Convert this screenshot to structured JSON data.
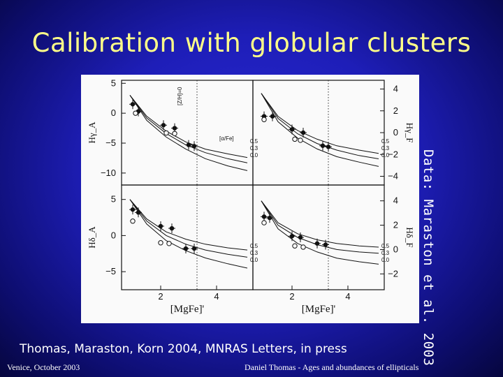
{
  "slide": {
    "title": "Calibration with globular clusters",
    "side_note": "Data: Maraston et al. 2003",
    "citation": "Thomas, Maraston, Korn 2004, MNRAS Letters, in press",
    "footer_left": "Venice, October 2003",
    "footer_right": "Daniel Thomas - Ages and abundances of ellipticals"
  },
  "colors": {
    "title": "#ffff88",
    "text": "#ffffff",
    "background": "#1e1eb8"
  },
  "chart_data": [
    {
      "type": "scatter",
      "panel": "top-left",
      "ylabel": "Hγ_A",
      "xlabel": "",
      "ylim": [
        -12,
        5.5
      ],
      "yticks": [
        5,
        0,
        -5,
        -10
      ],
      "xlim": [
        0.6,
        5.3
      ],
      "vline_x": 3.3,
      "annotations": [
        "[Z/H]=0",
        "[α/Fe]"
      ],
      "series": [
        {
          "name": "0.5",
          "x": [
            0.9,
            1.5,
            2.2,
            2.9,
            3.6,
            4.4,
            5.1
          ],
          "y": [
            3.0,
            -0.5,
            -3.0,
            -4.8,
            -6.0,
            -6.8,
            -7.4
          ]
        },
        {
          "name": "0.3",
          "x": [
            0.9,
            1.5,
            2.2,
            2.9,
            3.6,
            4.4,
            5.1
          ],
          "y": [
            3.0,
            -0.8,
            -3.4,
            -5.3,
            -6.6,
            -7.6,
            -8.3
          ]
        },
        {
          "name": "0.0",
          "x": [
            0.9,
            1.5,
            2.2,
            2.9,
            3.6,
            4.4,
            5.1
          ],
          "y": [
            3.0,
            -1.2,
            -4.0,
            -6.0,
            -7.6,
            -8.8,
            -9.6
          ]
        }
      ],
      "points_filled": [
        [
          1.0,
          1.5
        ],
        [
          1.2,
          0.3
        ],
        [
          2.1,
          -2.0
        ],
        [
          2.5,
          -2.5
        ],
        [
          3.0,
          -5.3
        ],
        [
          3.2,
          -5.5
        ]
      ],
      "points_open": [
        [
          1.1,
          0.0
        ],
        [
          2.2,
          -3.3
        ],
        [
          2.5,
          -3.4
        ]
      ]
    },
    {
      "type": "scatter",
      "panel": "top-right",
      "ylabel": "Hγ_F",
      "xlabel": "",
      "ylim": [
        -4.8,
        4.8
      ],
      "yticks": [
        4,
        2,
        0,
        -2,
        -4
      ],
      "xlim": [
        0.6,
        5.3
      ],
      "vline_x": 3.3,
      "annotations": [],
      "series": [
        {
          "name": "0.5",
          "x": [
            0.9,
            1.5,
            2.2,
            2.9,
            3.6,
            4.4,
            5.1
          ],
          "y": [
            3.6,
            1.5,
            0.2,
            -0.6,
            -1.2,
            -1.6,
            -1.9
          ]
        },
        {
          "name": "0.3",
          "x": [
            0.9,
            1.5,
            2.2,
            2.9,
            3.6,
            4.4,
            5.1
          ],
          "y": [
            3.6,
            1.3,
            -0.1,
            -1.0,
            -1.6,
            -2.1,
            -2.4
          ]
        },
        {
          "name": "0.0",
          "x": [
            0.9,
            1.5,
            2.2,
            2.9,
            3.6,
            4.4,
            5.1
          ],
          "y": [
            3.6,
            1.0,
            -0.5,
            -1.5,
            -2.2,
            -2.7,
            -3.1
          ]
        }
      ],
      "points_filled": [
        [
          1.0,
          1.5
        ],
        [
          1.3,
          1.5
        ],
        [
          2.0,
          0.3
        ],
        [
          2.4,
          0.0
        ],
        [
          3.1,
          -1.2
        ],
        [
          3.3,
          -1.3
        ]
      ],
      "points_open": [
        [
          1.0,
          1.2
        ],
        [
          2.1,
          -0.6
        ],
        [
          2.3,
          -0.7
        ]
      ]
    },
    {
      "type": "scatter",
      "panel": "bottom-left",
      "ylabel": "Hδ_A",
      "xlabel": "[MgFe]'",
      "ylim": [
        -7.5,
        7
      ],
      "yticks": [
        5,
        0,
        -5
      ],
      "xticks": [
        2,
        4
      ],
      "xlim": [
        0.6,
        5.3
      ],
      "vline_x": 3.3,
      "annotations": [],
      "series": [
        {
          "name": "0.5",
          "x": [
            0.9,
            1.5,
            2.2,
            2.9,
            3.6,
            4.4,
            5.1
          ],
          "y": [
            5.0,
            2.3,
            0.5,
            -0.5,
            -1.2,
            -1.7,
            -2.0
          ]
        },
        {
          "name": "0.3",
          "x": [
            0.9,
            1.5,
            2.2,
            2.9,
            3.6,
            4.4,
            5.1
          ],
          "y": [
            5.0,
            2.0,
            0.0,
            -1.2,
            -2.0,
            -2.6,
            -3.0
          ]
        },
        {
          "name": "0.0",
          "x": [
            0.9,
            1.5,
            2.2,
            2.9,
            3.6,
            4.4,
            5.1
          ],
          "y": [
            5.0,
            1.6,
            -0.7,
            -2.1,
            -3.1,
            -3.9,
            -4.5
          ]
        }
      ],
      "points_filled": [
        [
          1.0,
          3.6
        ],
        [
          1.2,
          3.2
        ],
        [
          2.0,
          1.3
        ],
        [
          2.4,
          1.0
        ],
        [
          2.9,
          -1.8
        ],
        [
          3.2,
          -1.8
        ]
      ],
      "points_open": [
        [
          1.0,
          2.0
        ],
        [
          2.0,
          -1.0
        ],
        [
          2.3,
          -1.1
        ]
      ]
    },
    {
      "type": "scatter",
      "panel": "bottom-right",
      "ylabel": "Hδ_F",
      "xlabel": "[MgFe]'",
      "ylim": [
        -3.3,
        5.3
      ],
      "yticks": [
        4,
        2,
        0,
        -2
      ],
      "xticks": [
        2,
        4
      ],
      "xlim": [
        0.6,
        5.3
      ],
      "vline_x": 3.3,
      "annotations": [],
      "series": [
        {
          "name": "0.5",
          "x": [
            0.9,
            1.5,
            2.2,
            2.9,
            3.6,
            4.4,
            5.1
          ],
          "y": [
            4.0,
            2.2,
            1.3,
            0.8,
            0.5,
            0.3,
            0.2
          ]
        },
        {
          "name": "0.3",
          "x": [
            0.9,
            1.5,
            2.2,
            2.9,
            3.6,
            4.4,
            5.1
          ],
          "y": [
            4.0,
            2.0,
            1.0,
            0.4,
            0.0,
            -0.2,
            -0.3
          ]
        },
        {
          "name": "0.0",
          "x": [
            0.9,
            1.5,
            2.2,
            2.9,
            3.6,
            4.4,
            5.1
          ],
          "y": [
            4.0,
            1.7,
            0.5,
            -0.2,
            -0.7,
            -1.0,
            -1.2
          ]
        }
      ],
      "points_filled": [
        [
          1.0,
          2.7
        ],
        [
          1.2,
          2.6
        ],
        [
          2.0,
          1.1
        ],
        [
          2.3,
          1.0
        ],
        [
          2.9,
          0.5
        ],
        [
          3.2,
          0.4
        ]
      ],
      "points_open": [
        [
          1.0,
          2.2
        ],
        [
          2.1,
          0.3
        ],
        [
          2.4,
          0.2
        ]
      ]
    }
  ]
}
